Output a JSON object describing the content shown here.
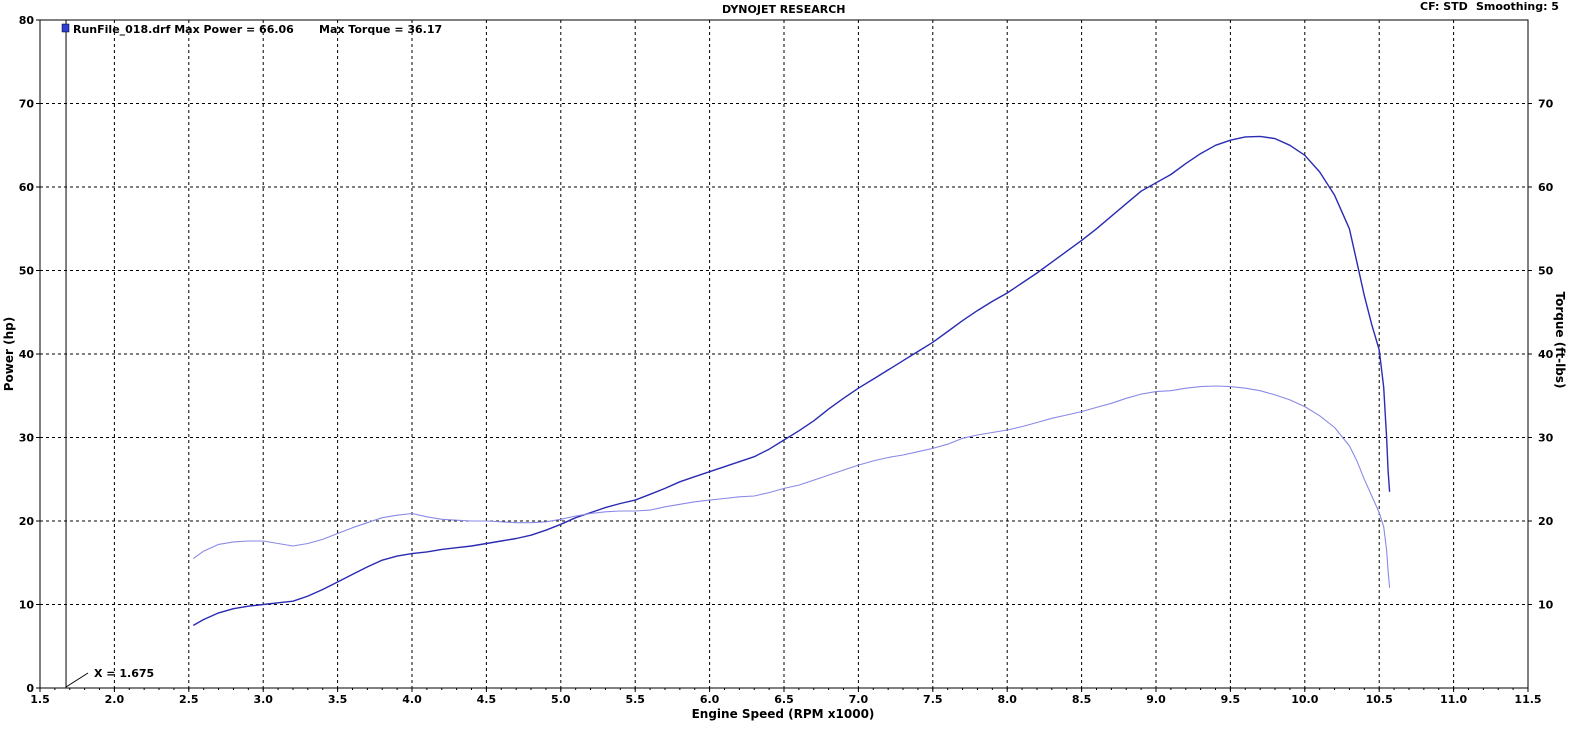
{
  "header": {
    "title": "DYNOJET RESEARCH",
    "cf": "CF: STD",
    "smoothing": "Smoothing: 5"
  },
  "legend": {
    "run_label": "RunFile_018.drf Max Power = 66.06",
    "torque_label": "Max Torque = 36.17"
  },
  "cursor": {
    "label": "X = 1.675",
    "x": 1.675
  },
  "colors": {
    "power": "#2b2bb3",
    "torque": "#8a8ae6",
    "grid": "#000000",
    "marker": "#2b3fd6"
  },
  "chart_data": {
    "type": "line",
    "title": "DYNOJET RESEARCH",
    "xlabel": "Engine Speed (RPM x1000)",
    "ylabel": "Power (hp)",
    "y2label": "Torque (ft-lbs)",
    "xlim": [
      1.5,
      11.5
    ],
    "ylim": [
      0,
      80
    ],
    "y2lim": [
      0,
      80
    ],
    "grid": true,
    "x_ticks": [
      "1.5",
      "2.0",
      "2.5",
      "3.0",
      "3.5",
      "4.0",
      "4.5",
      "5.0",
      "5.5",
      "6.0",
      "6.5",
      "7.0",
      "7.5",
      "8.0",
      "8.5",
      "9.0",
      "9.5",
      "10.0",
      "10.5",
      "11.0",
      "11.5"
    ],
    "y_ticks": [
      "0",
      "10",
      "20",
      "30",
      "40",
      "50",
      "60",
      "70",
      "80"
    ],
    "y2_ticks": [
      "10",
      "20",
      "30",
      "40",
      "50",
      "60",
      "70"
    ],
    "series": [
      {
        "name": "Power",
        "axis": "left",
        "x": [
          2.53,
          2.6,
          2.7,
          2.8,
          2.9,
          3.0,
          3.1,
          3.2,
          3.3,
          3.4,
          3.5,
          3.6,
          3.7,
          3.8,
          3.9,
          4.0,
          4.1,
          4.2,
          4.3,
          4.4,
          4.5,
          4.6,
          4.7,
          4.8,
          4.9,
          5.0,
          5.1,
          5.2,
          5.3,
          5.4,
          5.5,
          5.6,
          5.7,
          5.8,
          5.9,
          6.0,
          6.1,
          6.2,
          6.3,
          6.4,
          6.5,
          6.6,
          6.7,
          6.8,
          6.9,
          7.0,
          7.1,
          7.2,
          7.3,
          7.4,
          7.5,
          7.6,
          7.7,
          7.8,
          7.9,
          8.0,
          8.1,
          8.2,
          8.3,
          8.4,
          8.5,
          8.6,
          8.7,
          8.8,
          8.9,
          9.0,
          9.1,
          9.2,
          9.3,
          9.4,
          9.5,
          9.6,
          9.7,
          9.8,
          9.9,
          10.0,
          10.1,
          10.2,
          10.3,
          10.35,
          10.4,
          10.45,
          10.5,
          10.53,
          10.55,
          10.56,
          10.57
        ],
        "values": [
          7.5,
          8.2,
          9.0,
          9.5,
          9.8,
          10.0,
          10.2,
          10.4,
          11.0,
          11.8,
          12.7,
          13.6,
          14.5,
          15.3,
          15.8,
          16.1,
          16.3,
          16.6,
          16.8,
          17.0,
          17.3,
          17.6,
          17.9,
          18.3,
          18.9,
          19.6,
          20.4,
          21.0,
          21.6,
          22.1,
          22.5,
          23.2,
          23.9,
          24.7,
          25.3,
          25.9,
          26.5,
          27.1,
          27.7,
          28.6,
          29.7,
          30.8,
          32.0,
          33.4,
          34.7,
          35.9,
          37.0,
          38.1,
          39.2,
          40.3,
          41.4,
          42.7,
          44.0,
          45.2,
          46.3,
          47.3,
          48.5,
          49.7,
          51.0,
          52.3,
          53.6,
          55.0,
          56.5,
          58.0,
          59.5,
          60.5,
          61.5,
          62.8,
          64.0,
          65.0,
          65.6,
          66.0,
          66.06,
          65.8,
          65.0,
          63.8,
          61.8,
          59.0,
          55.0,
          51.0,
          47.0,
          43.5,
          40.5,
          36.0,
          30.0,
          26.0,
          23.5
        ]
      },
      {
        "name": "Torque",
        "axis": "right",
        "x": [
          2.53,
          2.6,
          2.7,
          2.8,
          2.9,
          3.0,
          3.1,
          3.2,
          3.3,
          3.4,
          3.5,
          3.6,
          3.7,
          3.8,
          3.9,
          4.0,
          4.1,
          4.2,
          4.3,
          4.4,
          4.5,
          4.6,
          4.7,
          4.8,
          4.9,
          5.0,
          5.1,
          5.2,
          5.3,
          5.4,
          5.5,
          5.6,
          5.7,
          5.8,
          5.9,
          6.0,
          6.1,
          6.2,
          6.3,
          6.4,
          6.5,
          6.6,
          6.7,
          6.8,
          6.9,
          7.0,
          7.1,
          7.2,
          7.3,
          7.4,
          7.5,
          7.6,
          7.7,
          7.8,
          7.9,
          8.0,
          8.1,
          8.2,
          8.3,
          8.4,
          8.5,
          8.6,
          8.7,
          8.8,
          8.9,
          9.0,
          9.1,
          9.2,
          9.3,
          9.4,
          9.5,
          9.6,
          9.7,
          9.8,
          9.9,
          10.0,
          10.1,
          10.2,
          10.3,
          10.35,
          10.4,
          10.45,
          10.5,
          10.53,
          10.55,
          10.56,
          10.57
        ],
        "values": [
          15.5,
          16.4,
          17.2,
          17.5,
          17.6,
          17.6,
          17.3,
          17.0,
          17.3,
          17.8,
          18.5,
          19.2,
          19.8,
          20.4,
          20.7,
          20.9,
          20.5,
          20.2,
          20.1,
          20.0,
          20.0,
          19.9,
          19.8,
          19.8,
          19.9,
          20.2,
          20.6,
          20.9,
          21.1,
          21.2,
          21.2,
          21.3,
          21.7,
          22.0,
          22.3,
          22.5,
          22.7,
          22.9,
          23.0,
          23.4,
          23.9,
          24.3,
          24.9,
          25.5,
          26.1,
          26.7,
          27.2,
          27.6,
          27.9,
          28.3,
          28.7,
          29.2,
          29.9,
          30.3,
          30.6,
          30.9,
          31.3,
          31.8,
          32.3,
          32.7,
          33.1,
          33.6,
          34.1,
          34.7,
          35.2,
          35.5,
          35.6,
          35.9,
          36.1,
          36.17,
          36.1,
          35.9,
          35.6,
          35.1,
          34.5,
          33.7,
          32.6,
          31.2,
          29.0,
          27.2,
          25.0,
          23.0,
          21.0,
          19.3,
          16.5,
          14.0,
          12.0
        ]
      }
    ],
    "legend_position": "top-left"
  }
}
